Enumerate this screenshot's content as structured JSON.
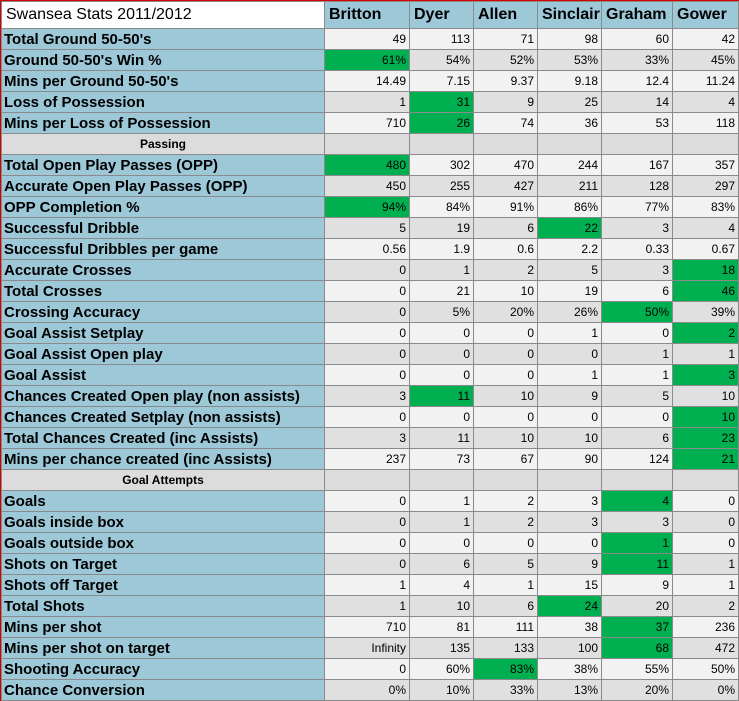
{
  "title": "Swansea Stats 2011/2012",
  "players": [
    "Britton",
    "Dyer",
    "Allen",
    "Sinclair",
    "Graham",
    "Gower"
  ],
  "colors": {
    "label_bg": "#9cc8d8",
    "highlight": "#00b050",
    "border_outer": "#d40000"
  },
  "rows": [
    {
      "label": "Total Ground 50-50's",
      "values": [
        "49",
        "113",
        "71",
        "98",
        "60",
        "42"
      ],
      "hl": []
    },
    {
      "label": "Ground 50-50's Win %",
      "values": [
        "61%",
        "54%",
        "52%",
        "53%",
        "33%",
        "45%"
      ],
      "hl": [
        0
      ]
    },
    {
      "label": "Mins per Ground 50-50's",
      "values": [
        "14.49",
        "7.15",
        "9.37",
        "9.18",
        "12.4",
        "11.24"
      ],
      "hl": []
    },
    {
      "label": "Loss of Possession",
      "values": [
        "1",
        "31",
        "9",
        "25",
        "14",
        "4"
      ],
      "hl": [
        1
      ]
    },
    {
      "label": "Mins per Loss of Possession",
      "values": [
        "710",
        "26",
        "74",
        "36",
        "53",
        "118"
      ],
      "hl": [
        1
      ]
    },
    {
      "section": "Passing"
    },
    {
      "label": "Total Open Play Passes (OPP)",
      "values": [
        "480",
        "302",
        "470",
        "244",
        "167",
        "357"
      ],
      "hl": [
        0
      ]
    },
    {
      "label": "Accurate Open Play Passes (OPP)",
      "values": [
        "450",
        "255",
        "427",
        "211",
        "128",
        "297"
      ],
      "hl": []
    },
    {
      "label": "OPP Completion %",
      "values": [
        "94%",
        "84%",
        "91%",
        "86%",
        "77%",
        "83%"
      ],
      "hl": [
        0
      ]
    },
    {
      "label": "Successful Dribble",
      "values": [
        "5",
        "19",
        "6",
        "22",
        "3",
        "4"
      ],
      "hl": [
        3
      ]
    },
    {
      "label": "Successful Dribbles per game",
      "values": [
        "0.56",
        "1.9",
        "0.6",
        "2.2",
        "0.33",
        "0.67"
      ],
      "hl": []
    },
    {
      "label": "Accurate Crosses",
      "values": [
        "0",
        "1",
        "2",
        "5",
        "3",
        "18"
      ],
      "hl": [
        5
      ]
    },
    {
      "label": "Total Crosses",
      "values": [
        "0",
        "21",
        "10",
        "19",
        "6",
        "46"
      ],
      "hl": [
        5
      ]
    },
    {
      "label": "Crossing Accuracy",
      "values": [
        "0",
        "5%",
        "20%",
        "26%",
        "50%",
        "39%"
      ],
      "hl": [
        4
      ]
    },
    {
      "label": "Goal Assist Setplay",
      "values": [
        "0",
        "0",
        "0",
        "1",
        "0",
        "2"
      ],
      "hl": [
        5
      ]
    },
    {
      "label": "Goal Assist Open play",
      "values": [
        "0",
        "0",
        "0",
        "0",
        "1",
        "1"
      ],
      "hl": []
    },
    {
      "label": "Goal Assist",
      "values": [
        "0",
        "0",
        "0",
        "1",
        "1",
        "3"
      ],
      "hl": [
        5
      ]
    },
    {
      "label": "Chances Created Open play (non assists)",
      "values": [
        "3",
        "11",
        "10",
        "9",
        "5",
        "10"
      ],
      "hl": [
        1
      ]
    },
    {
      "label": "Chances Created Setplay (non assists)",
      "values": [
        "0",
        "0",
        "0",
        "0",
        "0",
        "10"
      ],
      "hl": [
        5
      ]
    },
    {
      "label": "Total Chances Created (inc Assists)",
      "values": [
        "3",
        "11",
        "10",
        "10",
        "6",
        "23"
      ],
      "hl": [
        5
      ]
    },
    {
      "label": "Mins per chance created (inc Assists)",
      "values": [
        "237",
        "73",
        "67",
        "90",
        "124",
        "21"
      ],
      "hl": [
        5
      ]
    },
    {
      "section": "Goal Attempts"
    },
    {
      "label": "Goals",
      "values": [
        "0",
        "1",
        "2",
        "3",
        "4",
        "0"
      ],
      "hl": [
        4
      ]
    },
    {
      "label": "Goals inside box",
      "values": [
        "0",
        "1",
        "2",
        "3",
        "3",
        "0"
      ],
      "hl": []
    },
    {
      "label": "Goals outside box",
      "values": [
        "0",
        "0",
        "0",
        "0",
        "1",
        "0"
      ],
      "hl": [
        4
      ]
    },
    {
      "label": "Shots on Target",
      "values": [
        "0",
        "6",
        "5",
        "9",
        "11",
        "1"
      ],
      "hl": [
        4
      ]
    },
    {
      "label": "Shots off Target",
      "values": [
        "1",
        "4",
        "1",
        "15",
        "9",
        "1"
      ],
      "hl": []
    },
    {
      "label": "Total Shots",
      "values": [
        "1",
        "10",
        "6",
        "24",
        "20",
        "2"
      ],
      "hl": [
        3
      ]
    },
    {
      "label": "Mins per shot",
      "values": [
        "710",
        "81",
        "111",
        "38",
        "37",
        "236"
      ],
      "hl": [
        4
      ]
    },
    {
      "label": "Mins per shot on target",
      "values": [
        "Infinity",
        "135",
        "133",
        "100",
        "68",
        "472"
      ],
      "hl": [
        4
      ]
    },
    {
      "label": "Shooting Accuracy",
      "values": [
        "0",
        "60%",
        "83%",
        "38%",
        "55%",
        "50%"
      ],
      "hl": [
        2
      ]
    },
    {
      "label": "Chance Conversion",
      "values": [
        "0%",
        "10%",
        "33%",
        "13%",
        "20%",
        "0%"
      ],
      "hl": []
    }
  ]
}
